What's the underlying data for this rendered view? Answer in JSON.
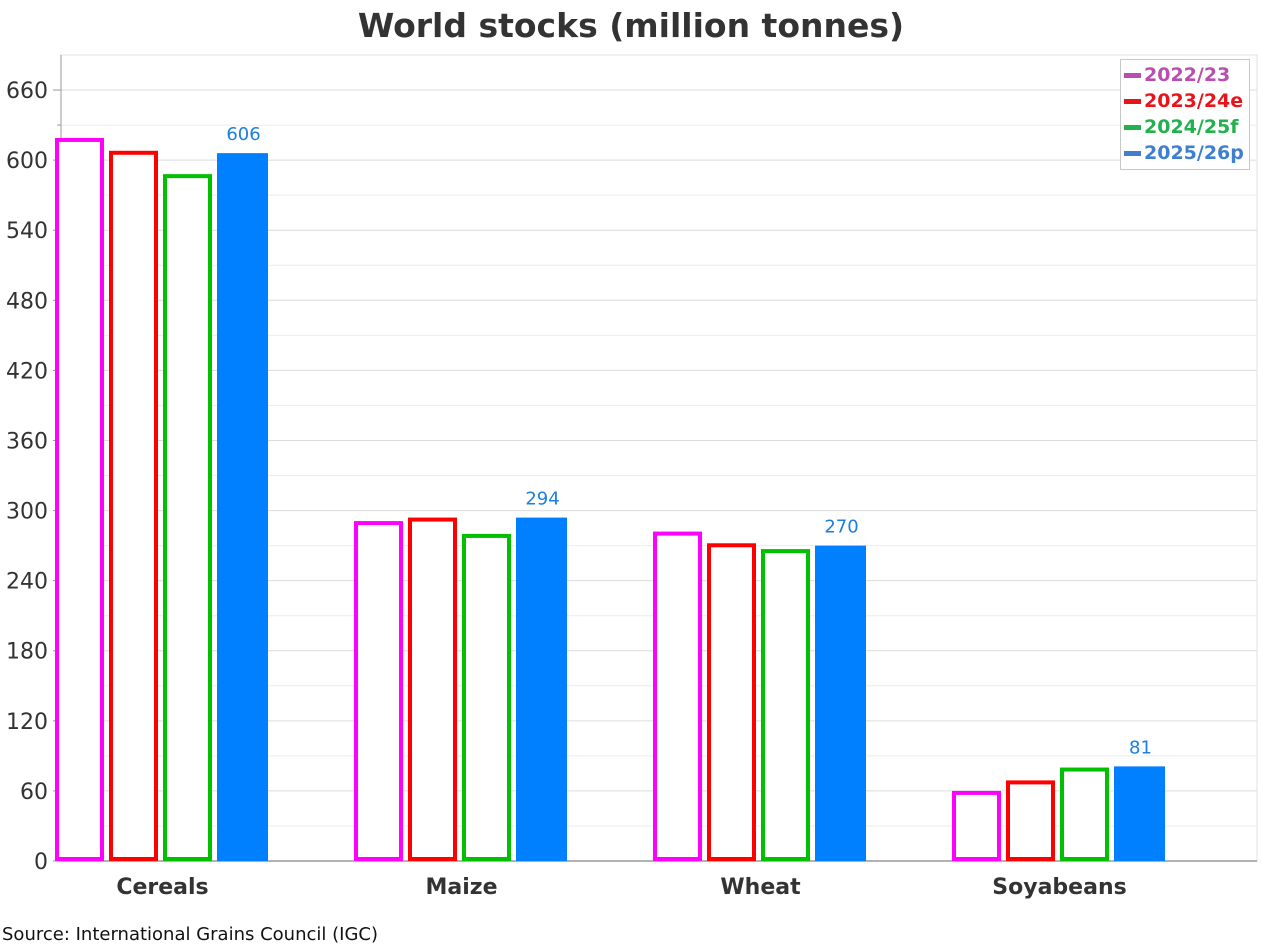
{
  "chart_data": {
    "type": "bar",
    "title": "World stocks (million tonnes)",
    "xlabel": "",
    "ylabel": "",
    "categories": [
      "Cereals",
      "Maize",
      "Wheat",
      "Soyabeans"
    ],
    "ylim": [
      0,
      690
    ],
    "yticks": [
      0,
      60,
      120,
      180,
      240,
      300,
      360,
      420,
      480,
      540,
      600,
      660
    ],
    "grid": true,
    "legend_position": "top-right",
    "series": [
      {
        "name": "2022/23",
        "values": [
          619,
          291,
          282,
          60
        ],
        "color": "#ff00ff",
        "legend_color": "#b84fb0",
        "style": "outline",
        "show_labels": false
      },
      {
        "name": "2023/24e",
        "values": [
          608,
          294,
          272,
          69
        ],
        "color": "#ff0000",
        "legend_color": "#e8141a",
        "style": "outline",
        "show_labels": false
      },
      {
        "name": "2024/25f",
        "values": [
          588,
          280,
          267,
          80
        ],
        "color": "#00c000",
        "legend_color": "#22b14c",
        "style": "outline",
        "show_labels": false
      },
      {
        "name": "2025/26p",
        "values": [
          606,
          294,
          270,
          81
        ],
        "color": "#0080ff",
        "legend_color": "#3f7fcf",
        "style": "filled",
        "show_labels": true
      }
    ]
  },
  "source": "Source: International Grains Council (IGC)"
}
